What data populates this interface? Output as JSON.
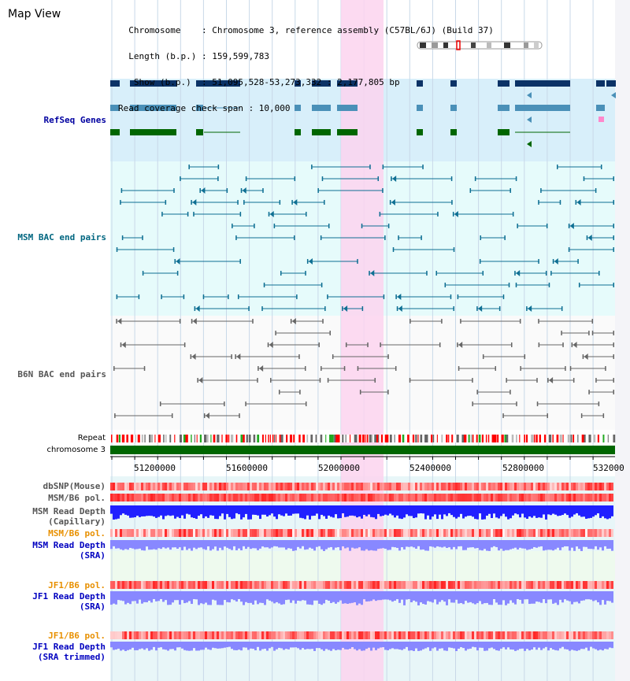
{
  "window_title": "Map View",
  "info_lines": [
    "  Chromosome    : Chromosome 3, reference assembly (C57BL/6J) (Build 37)",
    "  Length (b.p.) : 159,599,783",
    "   Show (b.p.)  : 51,095,528-53,273,332 : 2,177,805 bp",
    "Read coverage check span : 10,000"
  ],
  "tracks": {
    "refseq": "RefSeq Genes",
    "msm_bac": "MSM BAC end pairs",
    "b6n_bac": "B6N BAC end pairs",
    "repeat": "Repeat",
    "chromosome": "chromosome 3"
  },
  "axis_ticks": [
    "51200000",
    "51600000",
    "52000000",
    "52400000",
    "52800000",
    "532000"
  ],
  "snp_tracks": {
    "dbsnp": "dbSNP(Mouse)",
    "msm_pol_1": "MSM/B6 pol.",
    "msm_depth_cap_1": "MSM Read Depth",
    "msm_depth_cap_2": "(Capillary)",
    "msm_pol_2": "MSM/B6 pol.",
    "msm_depth_sra_1": "MSM Read Depth",
    "msm_depth_sra_2": "(SRA)",
    "jf1_pol_1": "JF1/B6 pol.",
    "jf1_depth_sra_1": "JF1 Read Depth",
    "jf1_depth_sra_2": "(SRA)",
    "jf1_pol_2": "JF1/B6 pol.",
    "jf1_depth_trim_1": "JF1 Read Depth",
    "jf1_depth_trim_2": "(SRA trimmed)"
  },
  "colors": {
    "refseq_bg": "#d8effa",
    "msm_bg": "#e6fbfb",
    "highlight": "#fbd3ef",
    "grid": "#c8d8e8",
    "gene_navy": "#0b3266",
    "gene_teal": "#4a90b8",
    "gene_green": "#006600",
    "bac_msm": "#0e6f93",
    "bac_b6n": "#666666",
    "chrom_green": "#006600",
    "depth_blue": "#2020ff",
    "depth_lavender": "#8888ff",
    "pol_red": "#e82020"
  }
}
